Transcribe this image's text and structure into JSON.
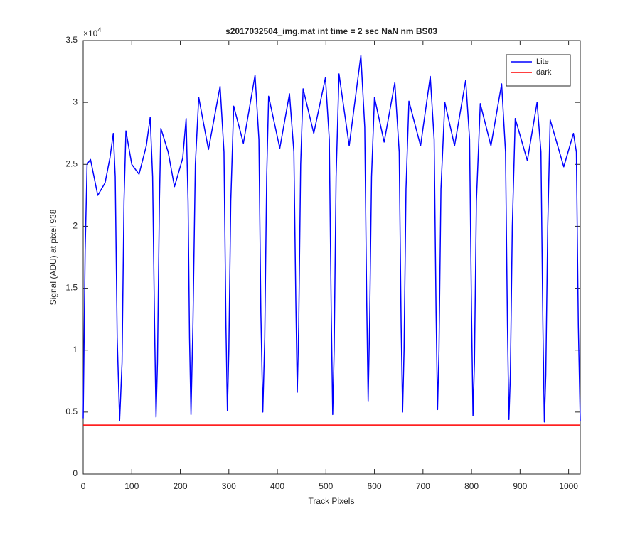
{
  "chart_data": {
    "type": "line",
    "title": "s2017032504_img.mat int time = 2 sec  NaN nm BS03",
    "x_label": "Track Pixels",
    "y_label": "Signal (ADU) at pixel 938",
    "y_multiplier": {
      "base": "×10",
      "exponent": "4"
    },
    "xlim": [
      0,
      1024
    ],
    "ylim": [
      0,
      35000
    ],
    "xticks": [
      0,
      100,
      200,
      300,
      400,
      500,
      600,
      700,
      800,
      900,
      1000
    ],
    "yticks": [
      {
        "value": 0,
        "label": "0"
      },
      {
        "value": 5000,
        "label": "0.5"
      },
      {
        "value": 10000,
        "label": "1"
      },
      {
        "value": 15000,
        "label": "1.5"
      },
      {
        "value": 20000,
        "label": "2"
      },
      {
        "value": 25000,
        "label": "2.5"
      },
      {
        "value": 30000,
        "label": "3"
      },
      {
        "value": 35000,
        "label": "3.5"
      }
    ],
    "grid": false,
    "legend_position": "northeast",
    "series": [
      {
        "name": "Lite",
        "color": "#0000ff",
        "x": [
          0,
          4,
          8,
          15,
          30,
          45,
          55,
          62,
          66,
          70,
          75,
          80,
          84,
          88,
          100,
          115,
          130,
          138,
          143,
          147,
          150,
          153,
          157,
          160,
          175,
          188,
          205,
          212,
          216,
          219,
          222,
          226,
          231,
          238,
          258,
          282,
          290,
          294,
          297,
          300,
          304,
          310,
          330,
          354,
          362,
          366,
          370,
          374,
          378,
          382,
          405,
          425,
          434,
          438,
          441,
          444,
          448,
          453,
          475,
          499,
          507,
          511,
          514,
          517,
          521,
          527,
          548,
          572,
          580,
          584,
          587,
          590,
          594,
          600,
          620,
          642,
          651,
          655,
          658,
          661,
          665,
          671,
          695,
          715,
          723,
          727,
          730,
          733,
          737,
          745,
          765,
          788,
          796,
          800,
          803,
          806,
          810,
          818,
          840,
          862,
          870,
          874,
          877,
          880,
          884,
          890,
          915,
          935,
          943,
          947,
          950,
          953,
          957,
          962,
          990,
          1010,
          1016,
          1020,
          1024
        ],
        "values": [
          4500,
          18000,
          25000,
          25400,
          22500,
          23500,
          25500,
          27500,
          24000,
          11000,
          4300,
          9000,
          22000,
          27700,
          25000,
          24200,
          26500,
          28800,
          24000,
          12000,
          4600,
          9000,
          22000,
          27900,
          26000,
          23200,
          25500,
          28700,
          22000,
          11000,
          4800,
          12000,
          25000,
          30400,
          26200,
          31300,
          26000,
          12000,
          5100,
          10000,
          22000,
          29700,
          26700,
          32200,
          27000,
          13000,
          5000,
          11000,
          24000,
          30500,
          26300,
          30700,
          26000,
          14000,
          6600,
          12000,
          25000,
          31100,
          27500,
          32000,
          27000,
          13000,
          4800,
          10000,
          24000,
          32300,
          26500,
          33800,
          28000,
          14000,
          5900,
          12000,
          24000,
          30400,
          26800,
          31600,
          26000,
          12000,
          5000,
          10000,
          23000,
          30100,
          26500,
          32100,
          27000,
          13000,
          5200,
          10000,
          23000,
          30000,
          26500,
          31800,
          27000,
          13000,
          4700,
          9000,
          22000,
          29900,
          26500,
          31500,
          26000,
          12000,
          4400,
          8000,
          20000,
          28700,
          25300,
          30000,
          26000,
          12000,
          4200,
          8000,
          20000,
          28600,
          24800,
          27500,
          26000,
          12000,
          4300
        ]
      },
      {
        "name": "dark",
        "color": "#ff0000",
        "x": [
          0,
          1024
        ],
        "values": [
          3950,
          3950
        ]
      }
    ]
  }
}
